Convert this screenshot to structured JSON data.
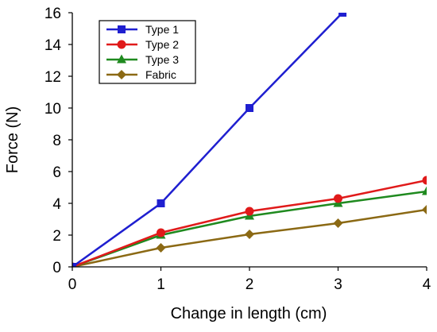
{
  "chart_data": {
    "type": "line",
    "title": "",
    "xlabel": "Change in length (cm)",
    "ylabel": "Force (N)",
    "x": [
      0,
      1,
      2,
      3,
      4
    ],
    "xlim": [
      0,
      4
    ],
    "ylim": [
      0,
      16
    ],
    "xticks": [
      0,
      1,
      2,
      3,
      4
    ],
    "yticks": [
      0,
      2,
      4,
      6,
      8,
      10,
      12,
      14,
      16
    ],
    "grid": false,
    "legend_position": "top-left",
    "series": [
      {
        "name": "Type 1",
        "color": "#1f1fd0",
        "marker": "square",
        "x": [
          0,
          1,
          2,
          3.05
        ],
        "y": [
          0,
          4,
          10,
          16
        ]
      },
      {
        "name": "Type 2",
        "color": "#e01a1a",
        "marker": "circle",
        "x": [
          0,
          1,
          2,
          3,
          4
        ],
        "y": [
          0,
          2.15,
          3.5,
          4.3,
          5.45
        ]
      },
      {
        "name": "Type 3",
        "color": "#1f8a1f",
        "marker": "triangle",
        "x": [
          0,
          1,
          2,
          3,
          4
        ],
        "y": [
          0,
          2.0,
          3.2,
          4.0,
          4.75
        ]
      },
      {
        "name": "Fabric",
        "color": "#8b6914",
        "marker": "diamond",
        "x": [
          0,
          1,
          2,
          3,
          4
        ],
        "y": [
          0,
          1.2,
          2.05,
          2.75,
          3.6
        ]
      }
    ]
  }
}
